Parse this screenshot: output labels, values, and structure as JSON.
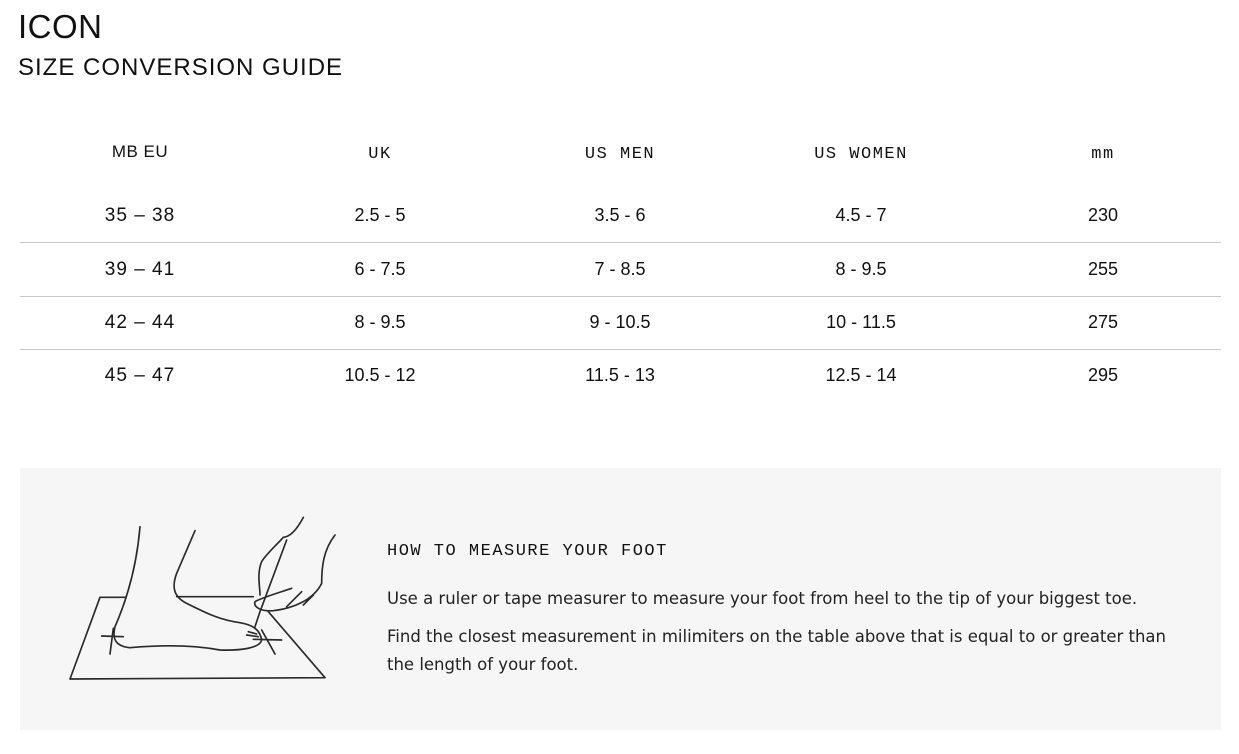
{
  "header": {
    "brand": "ICON",
    "title": "SIZE CONVERSION GUIDE"
  },
  "table": {
    "columns": [
      "MB EU",
      "UK",
      "US MEN",
      "US WOMEN",
      "mm"
    ],
    "rows": [
      [
        "35 – 38",
        "2.5 - 5",
        "3.5 - 6",
        "4.5 - 7",
        "230"
      ],
      [
        "39 – 41",
        "6 - 7.5",
        "7 - 8.5",
        "8 - 9.5",
        "255"
      ],
      [
        "42 – 44",
        "8 - 9.5",
        "9 - 10.5",
        "10 - 11.5",
        "275"
      ],
      [
        "45 – 47",
        "10.5 - 12",
        "11.5 - 13",
        "12.5 - 14",
        "295"
      ]
    ]
  },
  "measure": {
    "title": "HOW TO MEASURE YOUR FOOT",
    "p1": "Use a ruler or tape measurer to measure your foot from heel to the tip of your biggest toe.",
    "p2": "Find the closest measurement in milimiters on the table above that is equal to or greater than the length of your foot.",
    "illustration_icon": "foot-measure-illustration"
  }
}
